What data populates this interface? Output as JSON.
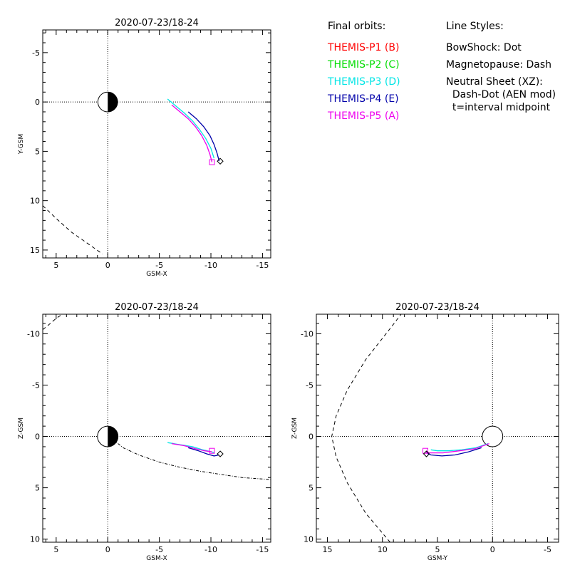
{
  "legend": {
    "heading": "Final orbits:",
    "items": [
      {
        "label": "THEMIS-P1 (B)",
        "color": "#ff0000"
      },
      {
        "label": "THEMIS-P2 (C)",
        "color": "#00dd00"
      },
      {
        "label": "THEMIS-P3 (D)",
        "color": "#00e5e5"
      },
      {
        "label": "THEMIS-P4 (E)",
        "color": "#0000aa"
      },
      {
        "label": "THEMIS-P5 (A)",
        "color": "#ee00ee"
      }
    ]
  },
  "styles": {
    "heading": "Line Styles:",
    "lines": [
      "BowShock: Dot",
      "Magnetopause: Dash",
      "Neutral Sheet (XZ):",
      "  Dash-Dot (AEN mod)",
      "  t=interval midpoint"
    ]
  },
  "chart_data": [
    {
      "id": "xy",
      "type": "line",
      "title": "2020-07-23/18-24",
      "xlabel": "GSM-X",
      "ylabel": "Y-GSM",
      "xlim": [
        6.3,
        -15.8
      ],
      "ylim": [
        -7.3,
        15.8
      ],
      "xticks": [
        5,
        0,
        -5,
        -10,
        -15
      ],
      "yticks": [
        -5,
        0,
        5,
        10,
        15
      ],
      "earth": {
        "center": [
          0,
          0
        ],
        "radius": 1
      },
      "series": [
        {
          "color": "#00e5e5",
          "points": [
            [
              -5.8,
              -0.3
            ],
            [
              -6.6,
              0.4
            ],
            [
              -7.4,
              1.1
            ],
            [
              -8.2,
              1.9
            ],
            [
              -8.9,
              2.8
            ],
            [
              -9.5,
              3.7
            ],
            [
              -10.0,
              4.7
            ],
            [
              -10.3,
              5.7
            ]
          ]
        },
        {
          "color": "#ee00ee",
          "points": [
            [
              -6.2,
              0.3
            ],
            [
              -7.0,
              1.0
            ],
            [
              -7.8,
              1.7
            ],
            [
              -8.5,
              2.5
            ],
            [
              -9.1,
              3.4
            ],
            [
              -9.6,
              4.4
            ],
            [
              -9.9,
              5.3
            ],
            [
              -10.1,
              6.1
            ]
          ]
        },
        {
          "color": "#0000aa",
          "points": [
            [
              -7.8,
              1.0
            ],
            [
              -8.6,
              1.7
            ],
            [
              -9.3,
              2.5
            ],
            [
              -9.9,
              3.4
            ],
            [
              -10.3,
              4.3
            ],
            [
              -10.6,
              5.2
            ],
            [
              -10.8,
              6.0
            ]
          ]
        }
      ],
      "markers": [
        {
          "shape": "square",
          "color": "#ee00ee",
          "at": [
            -10.1,
            6.1
          ]
        },
        {
          "shape": "diamond",
          "color": "#000000",
          "at": [
            -10.9,
            6.0
          ]
        }
      ],
      "boundary": {
        "style": "dash",
        "points": [
          [
            6.3,
            10.5
          ],
          [
            5.0,
            11.8
          ],
          [
            3.5,
            13.2
          ],
          [
            2.0,
            14.3
          ],
          [
            0.5,
            15.4
          ]
        ]
      }
    },
    {
      "id": "xz",
      "type": "line",
      "title": "2020-07-23/18-24",
      "xlabel": "GSM-X",
      "ylabel": "Z-GSM",
      "xlim": [
        6.3,
        -15.8
      ],
      "ylim": [
        -11.9,
        10.3
      ],
      "xticks": [
        5,
        0,
        -5,
        -10,
        -15
      ],
      "yticks": [
        10,
        5,
        0,
        -5,
        -10
      ],
      "earth": {
        "center": [
          0,
          0
        ],
        "radius": 1
      },
      "series": [
        {
          "color": "#00e5e5",
          "points": [
            [
              -5.8,
              0.6
            ],
            [
              -7.0,
              0.8
            ],
            [
              -8.2,
              1.0
            ],
            [
              -9.2,
              1.3
            ],
            [
              -10.1,
              1.5
            ],
            [
              -10.3,
              1.6
            ]
          ]
        },
        {
          "color": "#ee00ee",
          "points": [
            [
              -6.2,
              0.7
            ],
            [
              -7.4,
              0.9
            ],
            [
              -8.5,
              1.2
            ],
            [
              -9.4,
              1.4
            ],
            [
              -10.1,
              1.5
            ]
          ]
        },
        {
          "color": "#0000aa",
          "points": [
            [
              -7.8,
              1.1
            ],
            [
              -8.8,
              1.4
            ],
            [
              -9.6,
              1.7
            ],
            [
              -10.3,
              1.9
            ],
            [
              -10.8,
              1.8
            ]
          ]
        }
      ],
      "markers": [
        {
          "shape": "square",
          "color": "#ee00ee",
          "at": [
            -10.1,
            1.4
          ]
        },
        {
          "shape": "diamond",
          "color": "#000000",
          "at": [
            -10.9,
            1.7
          ]
        }
      ],
      "neutral_sheet": {
        "style": "dashdot",
        "points": [
          [
            -0.5,
            0.3
          ],
          [
            -1.5,
            1.1
          ],
          [
            -3.0,
            1.8
          ],
          [
            -5.0,
            2.5
          ],
          [
            -7.0,
            3.0
          ],
          [
            -9.0,
            3.4
          ],
          [
            -11.0,
            3.7
          ],
          [
            -13.0,
            4.0
          ],
          [
            -15.8,
            4.2
          ]
        ]
      },
      "boundary": {
        "style": "dash",
        "points": [
          [
            6.3,
            -10.4
          ],
          [
            5.8,
            -10.8
          ],
          [
            5.0,
            -11.5
          ],
          [
            4.4,
            -11.9
          ]
        ]
      }
    },
    {
      "id": "yz",
      "type": "line",
      "title": "2020-07-23/18-24",
      "xlabel": "GSM-Y",
      "ylabel": "Z-GSM",
      "xlim": [
        16.0,
        -6.0
      ],
      "ylim": [
        -11.9,
        10.3
      ],
      "xticks": [
        15,
        10,
        5,
        0,
        -5
      ],
      "yticks": [
        10,
        5,
        0,
        -5,
        -10
      ],
      "earth": {
        "center": [
          0,
          0
        ],
        "radius": 1
      },
      "series": [
        {
          "color": "#00e5e5",
          "points": [
            [
              0.4,
              0.7
            ],
            [
              1.5,
              1.1
            ],
            [
              2.8,
              1.3
            ],
            [
              4.0,
              1.4
            ],
            [
              5.0,
              1.4
            ],
            [
              5.6,
              1.3
            ]
          ]
        },
        {
          "color": "#ee00ee",
          "points": [
            [
              0.3,
              0.7
            ],
            [
              1.6,
              1.2
            ],
            [
              3.0,
              1.4
            ],
            [
              4.5,
              1.6
            ],
            [
              5.7,
              1.6
            ],
            [
              6.1,
              1.5
            ]
          ]
        },
        {
          "color": "#0000aa",
          "points": [
            [
              1.0,
              1.1
            ],
            [
              2.2,
              1.5
            ],
            [
              3.4,
              1.8
            ],
            [
              4.6,
              1.9
            ],
            [
              5.6,
              1.8
            ],
            [
              6.0,
              1.6
            ]
          ]
        }
      ],
      "markers": [
        {
          "shape": "square",
          "color": "#ee00ee",
          "at": [
            6.1,
            1.4
          ]
        },
        {
          "shape": "diamond",
          "color": "#000000",
          "at": [
            6.0,
            1.7
          ]
        }
      ],
      "boundary": {
        "style": "dash",
        "points": [
          [
            9.3,
            10.3
          ],
          [
            11.5,
            7.5
          ],
          [
            13.2,
            4.5
          ],
          [
            14.2,
            2.0
          ],
          [
            14.6,
            0.0
          ],
          [
            14.2,
            -2.0
          ],
          [
            13.2,
            -4.5
          ],
          [
            11.5,
            -7.5
          ],
          [
            9.3,
            -10.5
          ],
          [
            8.3,
            -11.9
          ]
        ]
      }
    }
  ]
}
